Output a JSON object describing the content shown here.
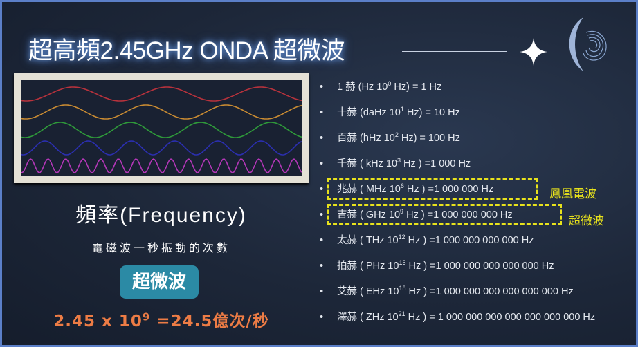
{
  "title": "超高頻2.45GHz ONDA 超微波",
  "frequency_heading": "頻率(Frequency)",
  "description": "電磁波一秒振動的次數",
  "badge": "超微波",
  "calculation": {
    "base": "2.45 x 10",
    "exponent": "9",
    "result": " =24.5億次/秒"
  },
  "wave_colors": [
    "#b8323c",
    "#c98b32",
    "#2f9a3a",
    "#2b2fb0",
    "#b437b8"
  ],
  "units": [
    {
      "pre": "1 赫  (Hz 10",
      "sup": "0",
      "post": " Hz)     = 1 Hz"
    },
    {
      "pre": "十赫 (daHz 10",
      "sup": "1",
      "post": " Hz)  = 10 Hz"
    },
    {
      "pre": "百赫 (hHz 10",
      "sup": "2",
      "post": " Hz)   = 100 Hz"
    },
    {
      "pre": "千赫 ( kHz 10",
      "sup": "3",
      "post": " Hz ) =1 000 Hz"
    },
    {
      "pre": "兆赫 ( MHz 10",
      "sup": "6",
      "post": " Hz ) =1 000 000 Hz"
    },
    {
      "pre": "吉赫 ( GHz 10",
      "sup": "9",
      "post": " Hz ) =1 000 000 000 Hz"
    },
    {
      "pre": "太赫 ( THz 10",
      "sup": "12",
      "post": " Hz ) =1 000 000 000 000 Hz"
    },
    {
      "pre": "拍赫 ( PHz 10",
      "sup": "15",
      "post": " Hz ) =1 000 000 000 000 000 Hz"
    },
    {
      "pre": "艾赫 ( EHz 10",
      "sup": "18",
      "post": " Hz ) =1 000 000 000 000 000 000 Hz"
    },
    {
      "pre": "澤赫 ( ZHz 10",
      "sup": "21",
      "post": " Hz ) = 1 000 000 000 000 000 000 000 Hz"
    }
  ],
  "highlights": {
    "mhz_label": "鳳凰電波",
    "ghz_label": "超微波",
    "color": "#e8e21c"
  },
  "bullet": "•"
}
